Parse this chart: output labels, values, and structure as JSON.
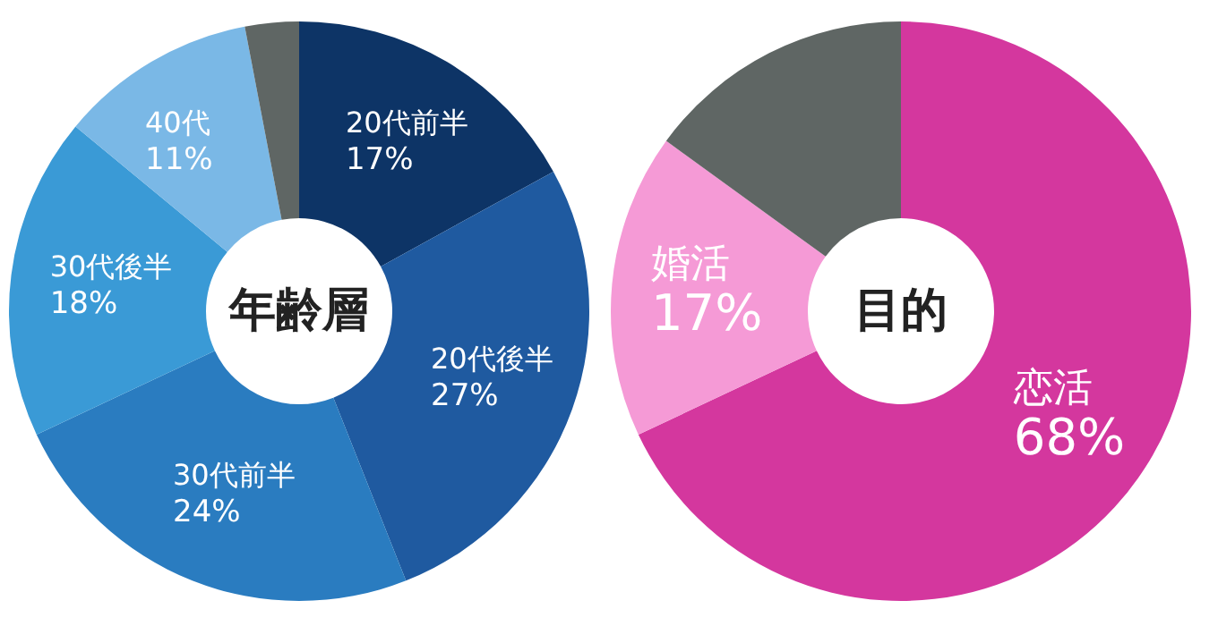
{
  "chart_data": [
    {
      "type": "donut",
      "title": "年齢層",
      "categories": [
        "20代前半",
        "20代後半",
        "30代前半",
        "30代後半",
        "40代",
        null
      ],
      "values": [
        17,
        27,
        24,
        18,
        11,
        3
      ],
      "value_labels": [
        "17%",
        "27%",
        "24%",
        "18%",
        "11%",
        null
      ],
      "colors": [
        "#0d3466",
        "#1f5aa0",
        "#2a7cc0",
        "#3a9ad6",
        "#7ab8e6",
        "#5f6664"
      ],
      "legend": false
    },
    {
      "type": "donut",
      "title": "目的",
      "categories": [
        "恋活",
        "婚活",
        null
      ],
      "values": [
        68,
        17,
        15
      ],
      "value_labels": [
        "68%",
        "17%",
        null
      ],
      "colors": [
        "#d4379e",
        "#f59ad6",
        "#5f6664"
      ],
      "legend": false
    }
  ]
}
